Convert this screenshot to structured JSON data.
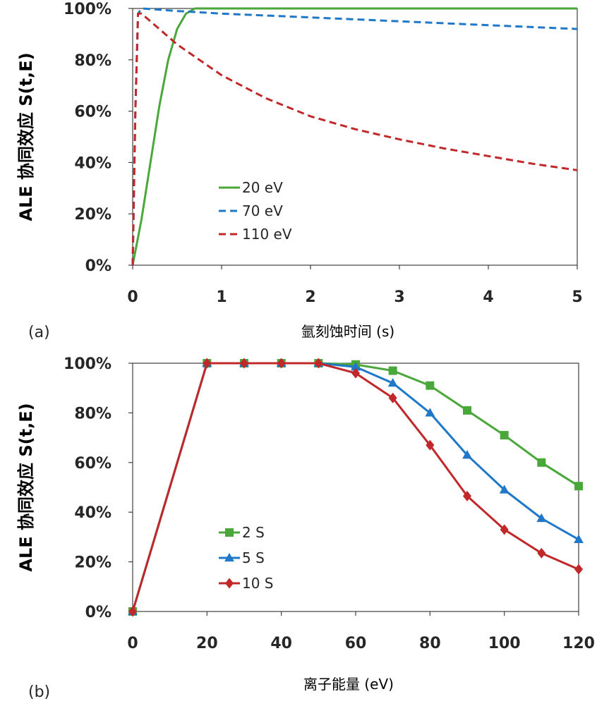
{
  "chart_data": [
    {
      "type": "line",
      "panel_label": "(a)",
      "ylabel": "ALE 协同效应 S(t,E)",
      "xlabel": "氩刻蚀时间 (s)",
      "xlim": [
        0,
        5
      ],
      "ylim": [
        0,
        1
      ],
      "x_ticks": [
        "0",
        "1",
        "2",
        "3",
        "4",
        "5"
      ],
      "y_ticks": [
        "0%",
        "20%",
        "40%",
        "60%",
        "80%",
        "100%"
      ],
      "legend_position": "lower-left",
      "series": [
        {
          "name": "20 eV",
          "color": "#4aa83a",
          "dash": "solid",
          "x": [
            0,
            0.1,
            0.2,
            0.3,
            0.4,
            0.5,
            0.6,
            0.7,
            0.8,
            1,
            2,
            3,
            4,
            5
          ],
          "y": [
            0,
            0.18,
            0.4,
            0.62,
            0.8,
            0.92,
            0.98,
            1.0,
            1.0,
            1.0,
            1.0,
            1.0,
            1.0,
            1.0
          ]
        },
        {
          "name": "70 eV",
          "color": "#1f78c8",
          "dash": "dash",
          "x": [
            0,
            0.03,
            0.06,
            0.1,
            0.5,
            1,
            2,
            3,
            4,
            5
          ],
          "y": [
            0,
            0.6,
            0.98,
            1.0,
            0.99,
            0.98,
            0.965,
            0.95,
            0.935,
            0.92
          ]
        },
        {
          "name": "110 eV",
          "color": "#c0282a",
          "dash": "dash",
          "x": [
            0,
            0.03,
            0.06,
            0.1,
            0.3,
            0.5,
            1,
            1.5,
            2,
            2.5,
            3,
            3.5,
            4,
            4.5,
            5
          ],
          "y": [
            0,
            0.6,
            0.98,
            0.98,
            0.92,
            0.86,
            0.74,
            0.65,
            0.58,
            0.53,
            0.49,
            0.455,
            0.425,
            0.395,
            0.37
          ]
        }
      ]
    },
    {
      "type": "line",
      "panel_label": "(b)",
      "ylabel": "ALE 协同效应 S(t,E)",
      "xlabel": "离子能量 (eV)",
      "xlim": [
        0,
        120
      ],
      "ylim": [
        0,
        1
      ],
      "x_ticks": [
        "0",
        "20",
        "40",
        "60",
        "80",
        "100",
        "120"
      ],
      "y_ticks": [
        "0%",
        "20%",
        "40%",
        "60%",
        "80%",
        "100%"
      ],
      "legend_position": "lower-left",
      "x": [
        0,
        20,
        30,
        40,
        50,
        60,
        70,
        80,
        90,
        100,
        110,
        120
      ],
      "series": [
        {
          "name": "2 S",
          "color": "#4aa83a",
          "marker": "square",
          "values": [
            0,
            1.0,
            1.0,
            1.0,
            1.0,
            0.995,
            0.97,
            0.91,
            0.81,
            0.71,
            0.6,
            0.505
          ]
        },
        {
          "name": "5 S",
          "color": "#1f78c8",
          "marker": "triangle",
          "values": [
            0,
            1.0,
            1.0,
            1.0,
            1.0,
            0.985,
            0.92,
            0.8,
            0.63,
            0.49,
            0.375,
            0.29
          ]
        },
        {
          "name": "10 S",
          "color": "#c0282a",
          "marker": "diamond",
          "values": [
            0,
            1.0,
            1.0,
            1.0,
            1.0,
            0.96,
            0.86,
            0.67,
            0.465,
            0.33,
            0.235,
            0.17
          ]
        }
      ]
    }
  ]
}
